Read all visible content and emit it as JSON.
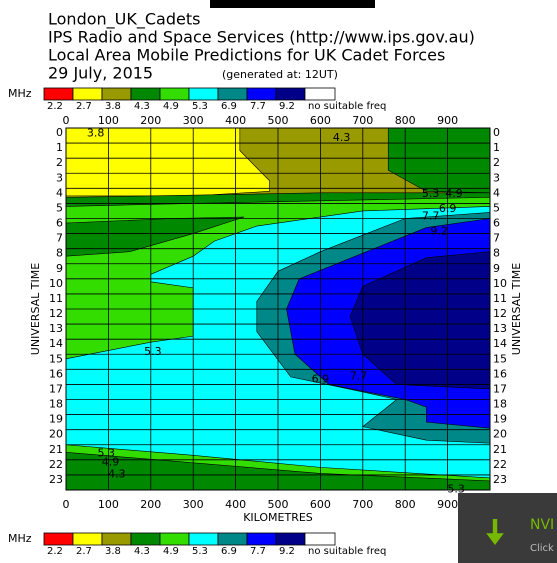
{
  "chart_data": {
    "type": "contour",
    "titles": [
      "London_UK_Cadets",
      "IPS Radio and Space Services (http://www.ips.gov.au)",
      "Local Area Mobile Predictions for UK Cadet Forces",
      "29 July, 2015"
    ],
    "generated": "(generated at: 12UT)",
    "legend_unit": "MHz",
    "levels": [
      {
        "value": 2.2,
        "color": "#ff0000"
      },
      {
        "value": 2.7,
        "color": "#ffff00"
      },
      {
        "value": 3.8,
        "color": "#999900"
      },
      {
        "value": 4.3,
        "color": "#008800"
      },
      {
        "value": 4.9,
        "color": "#33dd00"
      },
      {
        "value": 5.3,
        "color": "#00ffff"
      },
      {
        "value": 6.9,
        "color": "#008888"
      },
      {
        "value": 7.7,
        "color": "#0000ff"
      },
      {
        "value": 9.2,
        "color": "#000088"
      }
    ],
    "no_freq": {
      "label": "no suitable freq",
      "color": "#ffffff"
    },
    "x_label": "KILOMETRES",
    "y_label": "UNIVERSAL TIME",
    "xlim": [
      0,
      1000
    ],
    "xticks": [
      0,
      100,
      200,
      300,
      400,
      500,
      600,
      700,
      800,
      900
    ],
    "ylim": [
      0,
      24
    ],
    "yticks": [
      0,
      1,
      2,
      3,
      4,
      5,
      6,
      7,
      8,
      9,
      10,
      11,
      12,
      13,
      14,
      15,
      16,
      17,
      18,
      19,
      20,
      21,
      22,
      23
    ],
    "grid": true,
    "regions": [
      {
        "level": 3.8,
        "x": [
          0,
          1000,
          1000,
          0
        ],
        "y": [
          0,
          0,
          24,
          24
        ]
      },
      {
        "level": 4.3,
        "x": [
          760,
          1000,
          1000,
          850,
          760
        ],
        "y": [
          0,
          0,
          4.3,
          4.2,
          2.8
        ]
      },
      {
        "level": 2.7,
        "x": [
          0,
          410,
          410,
          480,
          480,
          300,
          0
        ],
        "y": [
          0,
          0,
          1.5,
          3.5,
          4.2,
          4.5,
          4.5
        ]
      },
      {
        "level": 4.3,
        "x": [
          0,
          600,
          1000,
          1000,
          0
        ],
        "y": [
          4.6,
          4.3,
          4.3,
          24,
          24
        ]
      },
      {
        "level": 4.9,
        "x": [
          0,
          300,
          1000,
          1000,
          600,
          0
        ],
        "y": [
          5.2,
          5.0,
          4.6,
          23.4,
          22.9,
          21.5
        ]
      },
      {
        "level": 4.3,
        "x": [
          0,
          250,
          420,
          300,
          150,
          0
        ],
        "y": [
          6.3,
          6.0,
          5.9,
          7.0,
          8.2,
          8.5
        ]
      },
      {
        "level": 5.3,
        "x": [
          1000,
          700,
          450,
          350,
          300,
          200,
          200,
          300,
          300,
          200,
          0,
          0,
          300,
          600,
          1000
        ],
        "y": [
          5.2,
          5.5,
          6.5,
          7.5,
          8.5,
          9.7,
          10.2,
          10.6,
          13.8,
          14.2,
          15.3,
          21,
          21.7,
          22.5,
          23.2
        ]
      },
      {
        "level": 6.9,
        "x": [
          1000,
          800,
          600,
          500,
          450,
          450,
          530,
          700,
          780,
          700,
          850,
          1000
        ],
        "y": [
          5.6,
          6.0,
          8.2,
          9.5,
          11.5,
          13.5,
          16.5,
          17.5,
          18.0,
          19.8,
          20.7,
          20.9
        ]
      },
      {
        "level": 7.7,
        "x": [
          1000,
          850,
          700,
          550,
          520,
          540,
          620,
          800,
          850,
          850,
          1000
        ],
        "y": [
          6.0,
          6.6,
          8.3,
          10,
          12,
          15,
          17,
          18,
          18.5,
          19.5,
          19.9
        ]
      },
      {
        "level": 9.2,
        "x": [
          1000,
          850,
          700,
          670,
          700,
          780,
          1000
        ],
        "y": [
          8.2,
          8.6,
          10.5,
          12.5,
          15,
          17,
          17.3
        ]
      }
    ],
    "contour_labels": [
      {
        "level": 3.8,
        "x": 70,
        "y": 0.1
      },
      {
        "level": 4.3,
        "x": 650,
        "y": 0.4
      },
      {
        "level": 5.3,
        "x": 860,
        "y": 4.1
      },
      {
        "level": 4.9,
        "x": 915,
        "y": 4.1
      },
      {
        "level": 6.9,
        "x": 900,
        "y": 5.1
      },
      {
        "level": 7.7,
        "x": 860,
        "y": 5.6
      },
      {
        "level": 9.2,
        "x": 880,
        "y": 6.6
      },
      {
        "level": 5.3,
        "x": 205,
        "y": 14.6
      },
      {
        "level": 6.9,
        "x": 600,
        "y": 16.4
      },
      {
        "level": 7.7,
        "x": 690,
        "y": 16.2
      },
      {
        "level": 5.3,
        "x": 95,
        "y": 21.3
      },
      {
        "level": 4.9,
        "x": 105,
        "y": 21.9
      },
      {
        "level": 4.3,
        "x": 120,
        "y": 22.7
      },
      {
        "level": 5.3,
        "x": 920,
        "y": 23.7
      }
    ]
  },
  "notification": {
    "title": "NVI",
    "text": "Click t"
  }
}
